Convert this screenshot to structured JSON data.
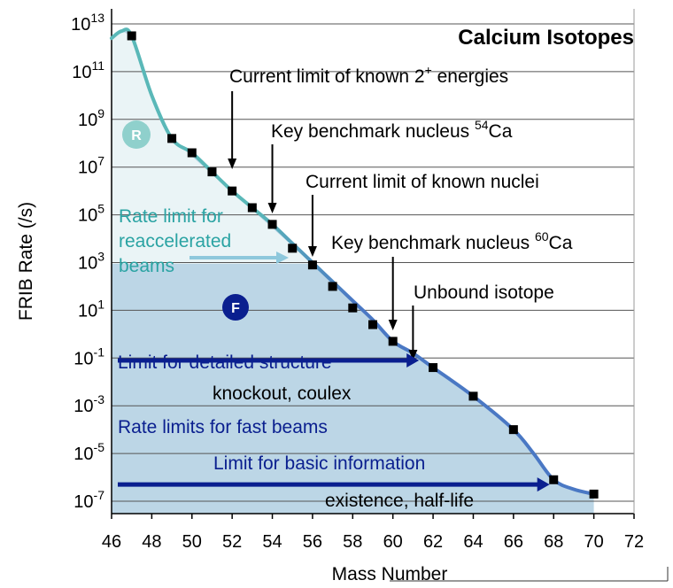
{
  "chart_data": {
    "type": "line",
    "title": "Calcium Isotopes",
    "xlabel": "Mass Number",
    "ylabel": "FRIB Rate (/s)",
    "xlim": [
      46,
      72
    ],
    "ylim_log10": [
      -7.8,
      13
    ],
    "y_scale": "log",
    "grid": "horizontal",
    "x_ticks": [
      "46",
      "48",
      "50",
      "52",
      "54",
      "56",
      "58",
      "60",
      "62",
      "64",
      "66",
      "68",
      "70",
      "72"
    ],
    "y_ticks": [
      {
        "base": "10",
        "exp": "13",
        "log": 13
      },
      {
        "base": "10",
        "exp": "11",
        "log": 11
      },
      {
        "base": "10",
        "exp": "9",
        "log": 9
      },
      {
        "base": "10",
        "exp": "7",
        "log": 7
      },
      {
        "base": "10",
        "exp": "5",
        "log": 5
      },
      {
        "base": "10",
        "exp": "3",
        "log": 3
      },
      {
        "base": "10",
        "exp": "1",
        "log": 1
      },
      {
        "base": "10",
        "exp": "-1",
        "log": -1
      },
      {
        "base": "10",
        "exp": "-3",
        "log": -3
      },
      {
        "base": "10",
        "exp": "-5",
        "log": -5
      },
      {
        "base": "10",
        "exp": "-7",
        "log": -7
      }
    ],
    "curve": {
      "x": [
        46,
        46.5,
        47,
        48,
        49,
        50,
        51,
        52,
        53,
        54,
        55,
        56,
        57,
        58,
        59,
        60,
        61,
        62,
        64,
        66,
        67,
        68,
        69,
        70
      ],
      "log_rate": [
        12.4,
        12.7,
        12.5,
        10.0,
        8.2,
        7.6,
        6.8,
        6.0,
        5.3,
        4.6,
        3.8,
        3.0,
        2.2,
        1.4,
        0.6,
        -0.3,
        -0.8,
        -1.4,
        -2.6,
        -4.0,
        -5.0,
        -6.1,
        -6.5,
        -6.7
      ]
    },
    "points": {
      "x": [
        47,
        49,
        50,
        51,
        52,
        53,
        54,
        55,
        56,
        57,
        58,
        59,
        60,
        62,
        64,
        66,
        68,
        70
      ],
      "log_rate": [
        12.5,
        8.2,
        7.6,
        6.8,
        6.0,
        5.3,
        4.6,
        3.6,
        2.9,
        2.0,
        1.1,
        0.4,
        -0.3,
        -1.4,
        -2.6,
        -4.0,
        -6.1,
        -6.7
      ]
    },
    "colors": {
      "curve_light": "#5ab8b8",
      "curve_dark": "#4a78c4",
      "fill_light": "#eaf4f6",
      "fill_dark": "#bcd6e6",
      "navy": "#0a1f8f",
      "teal": "#2aa3a3",
      "badge_r": "#8fd0cc",
      "badge_f": "#0a1f8f",
      "grid": "#555555"
    },
    "annotations": {
      "known_2plus": {
        "text": "Current limit of known 2",
        "sup": "+",
        "text2": " energies",
        "arrow_x": 52
      },
      "bench54": {
        "text": "Key benchmark nucleus ",
        "sup": "54",
        "text2": "Ca",
        "arrow_x": 54
      },
      "known_nuclei": {
        "text": "Current limit of known nuclei",
        "arrow_x": 56
      },
      "bench60": {
        "text": "Key benchmark nucleus ",
        "sup": "60",
        "text2": "Ca",
        "arrow_x": 60
      },
      "unbound": {
        "text": "Unbound isotope",
        "arrow_x": 61
      },
      "reacc_lines": [
        "Rate limit for",
        "reaccelerated",
        "beams"
      ],
      "badge_r": "R",
      "badge_f": "F",
      "detailed_limit": {
        "label": "Limit for detailed structure",
        "sub": "knockout, coulex",
        "log_rate": -1.1,
        "arrow_end_x": 61.3
      },
      "fast_beams": "Rate limits for fast  beams",
      "basic_limit": {
        "label": "Limit for basic information",
        "sub": "existence, half-life",
        "log_rate": -6.3,
        "arrow_end_x": 67.8
      }
    }
  }
}
